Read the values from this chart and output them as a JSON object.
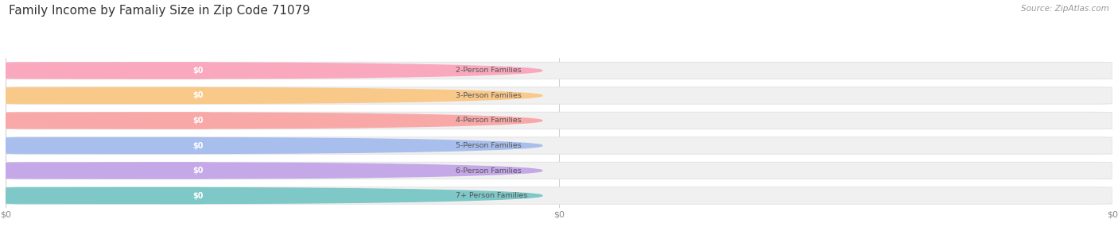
{
  "title": "Family Income by Famaliy Size in Zip Code 71079",
  "source": "Source: ZipAtlas.com",
  "categories": [
    "2-Person Families",
    "3-Person Families",
    "4-Person Families",
    "5-Person Families",
    "6-Person Families",
    "7+ Person Families"
  ],
  "values": [
    0,
    0,
    0,
    0,
    0,
    0
  ],
  "bar_colors": [
    "#F9A8BE",
    "#F9C98A",
    "#F9A8A8",
    "#A8BFEE",
    "#C4A8E8",
    "#7EC8C8"
  ],
  "background_color": "#ffffff",
  "label_color": "#555555",
  "title_color": "#333333",
  "source_color": "#999999",
  "figsize": [
    14.06,
    3.05
  ],
  "dpi": 100,
  "x_tick_labels": [
    "$0",
    "$0",
    "$0"
  ],
  "x_tick_positions": [
    0.0,
    0.5,
    1.0
  ]
}
